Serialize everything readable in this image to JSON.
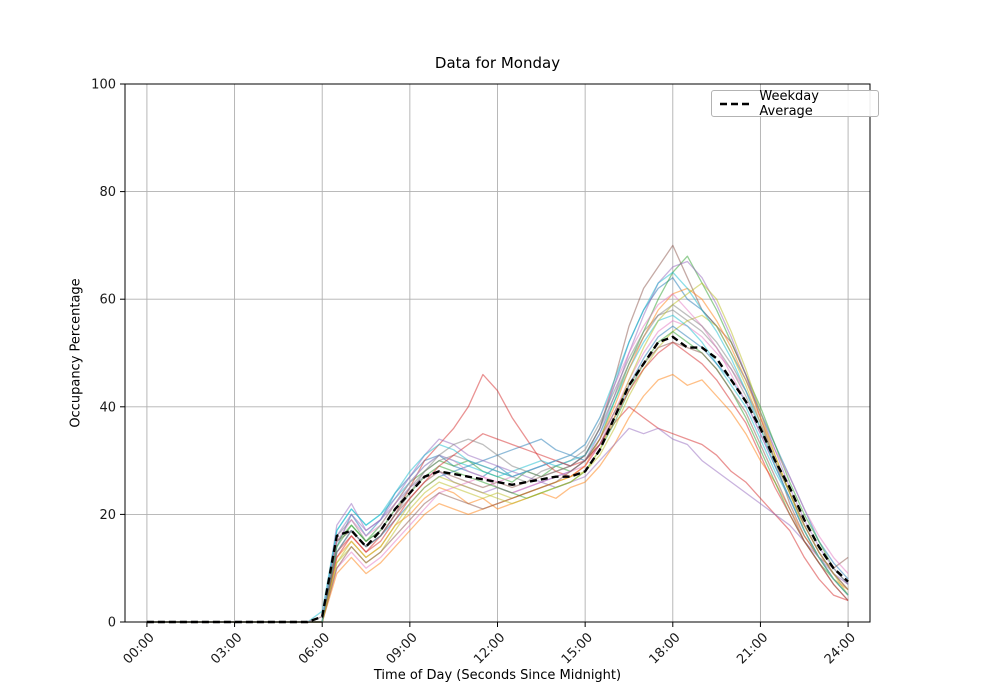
{
  "chart_data": {
    "type": "line",
    "title": "Data for Monday",
    "xlabel": "Time of Day (Seconds Since Midnight)",
    "ylabel": "Occupancy Percentage",
    "xlim": [
      -0.75,
      24.75
    ],
    "ylim": [
      0,
      100
    ],
    "grid": true,
    "grid_color": "#b0b0b0",
    "axis_color": "#000000",
    "tick_label_color": "#1a1a1a",
    "x_ticks": {
      "hours": [
        0,
        3,
        6,
        9,
        12,
        15,
        18,
        21,
        24
      ],
      "labels": [
        "00:00",
        "03:00",
        "06:00",
        "09:00",
        "12:00",
        "15:00",
        "18:00",
        "21:00",
        "24:00"
      ]
    },
    "y_ticks": [
      0,
      20,
      40,
      60,
      80,
      100
    ],
    "x_start": 0,
    "x_step": 0.5,
    "legend": {
      "label": "Weekday Average",
      "loc": "upper right"
    },
    "series_opacity": 0.5,
    "palette": [
      "#1f77b4",
      "#ff7f0e",
      "#2ca02c",
      "#d62728",
      "#9467bd",
      "#8c564b",
      "#e377c2",
      "#7f7f7f",
      "#bcbd22",
      "#17becf"
    ],
    "average": {
      "color": "#000000",
      "dash": [
        7,
        4
      ],
      "values": [
        0,
        0,
        0,
        0,
        0,
        0,
        0,
        0,
        0,
        0,
        0,
        0,
        1,
        16,
        17,
        14,
        17,
        21,
        24,
        27,
        28,
        27.5,
        27,
        26.5,
        26,
        25.5,
        26,
        26.5,
        27,
        27,
        28,
        32,
        38,
        44,
        48,
        52,
        53,
        51,
        51,
        49,
        45,
        41,
        36,
        30,
        25,
        19,
        14,
        10,
        7.5
      ]
    },
    "series": [
      [
        0,
        0,
        0,
        0,
        0,
        0,
        0,
        0,
        0,
        0,
        0,
        0,
        0,
        14,
        20,
        16,
        19,
        24,
        27,
        30,
        31,
        29,
        28,
        27,
        29,
        27,
        28,
        29,
        30,
        29,
        31,
        36,
        44,
        52,
        58,
        62,
        64,
        60,
        58,
        55,
        50,
        45,
        39,
        33,
        27,
        21,
        15,
        11,
        8
      ],
      [
        0,
        0,
        0,
        0,
        0,
        0,
        0,
        0,
        0,
        0,
        0,
        0,
        0,
        12,
        15,
        12,
        14,
        18,
        20,
        23,
        25,
        24,
        22,
        23,
        21,
        22,
        23,
        24,
        23,
        25,
        26,
        29,
        33,
        38,
        42,
        45,
        46,
        44,
        45,
        42,
        39,
        35,
        30,
        26,
        21,
        16,
        12,
        8,
        6
      ],
      [
        0,
        0,
        0,
        0,
        0,
        0,
        0,
        0,
        0,
        0,
        0,
        0,
        1,
        15,
        18,
        15,
        18,
        22,
        26,
        28,
        30,
        29,
        30,
        28,
        27,
        26,
        28,
        27,
        29,
        28,
        30,
        34,
        41,
        48,
        54,
        60,
        65,
        68,
        63,
        58,
        52,
        46,
        40,
        33,
        26,
        20,
        15,
        10,
        7
      ],
      [
        0,
        0,
        0,
        0,
        0,
        0,
        0,
        0,
        0,
        0,
        0,
        0,
        0,
        13,
        16,
        13,
        16,
        20,
        25,
        30,
        33,
        36,
        40,
        46,
        43,
        38,
        34,
        30,
        28,
        27,
        29,
        33,
        37,
        40,
        38,
        36,
        35,
        34,
        33,
        31,
        28,
        26,
        23,
        20,
        17,
        12,
        8,
        5,
        4
      ],
      [
        0,
        0,
        0,
        0,
        0,
        0,
        0,
        0,
        0,
        0,
        0,
        0,
        0,
        18,
        22,
        17,
        19,
        22,
        25,
        27,
        28,
        26,
        25,
        24,
        25,
        24,
        25,
        26,
        25,
        26,
        27,
        30,
        33,
        36,
        35,
        36,
        34,
        33,
        30,
        28,
        26,
        24,
        22,
        20,
        18,
        15,
        12,
        9,
        7
      ],
      [
        0,
        0,
        0,
        0,
        0,
        0,
        0,
        0,
        0,
        0,
        0,
        0,
        0,
        15,
        17,
        14,
        16,
        20,
        23,
        26,
        28,
        27,
        26,
        25,
        26,
        25,
        26,
        27,
        28,
        29,
        31,
        36,
        45,
        55,
        62,
        66,
        70,
        64,
        58,
        55,
        52,
        46,
        38,
        30,
        22,
        16,
        12,
        10,
        12
      ],
      [
        0,
        0,
        0,
        0,
        0,
        0,
        0,
        0,
        0,
        0,
        0,
        0,
        0,
        10,
        13,
        10,
        12,
        15,
        18,
        21,
        24,
        25,
        26,
        27,
        25,
        24,
        25,
        26,
        27,
        28,
        29,
        33,
        39,
        45,
        50,
        54,
        56,
        55,
        53,
        50,
        47,
        43,
        38,
        32,
        27,
        21,
        16,
        12,
        9
      ],
      [
        0,
        0,
        0,
        0,
        0,
        0,
        0,
        0,
        0,
        0,
        0,
        0,
        0,
        16,
        19,
        15,
        17,
        21,
        25,
        28,
        30,
        31,
        30,
        29,
        28,
        27,
        26,
        28,
        29,
        30,
        32,
        37,
        43,
        49,
        54,
        57,
        58,
        56,
        54,
        51,
        47,
        42,
        36,
        30,
        24,
        18,
        13,
        9,
        6
      ],
      [
        0,
        0,
        0,
        0,
        0,
        0,
        0,
        0,
        0,
        0,
        0,
        0,
        0,
        11,
        14,
        11,
        13,
        17,
        21,
        24,
        26,
        25,
        24,
        23,
        24,
        23,
        24,
        25,
        26,
        27,
        28,
        31,
        36,
        42,
        47,
        51,
        54,
        56,
        57,
        55,
        50,
        44,
        37,
        30,
        24,
        18,
        13,
        9,
        5
      ],
      [
        0,
        0,
        0,
        0,
        0,
        0,
        0,
        0,
        0,
        0,
        0,
        0,
        2,
        17,
        21,
        18,
        20,
        23,
        26,
        29,
        31,
        30,
        29,
        28,
        27,
        28,
        29,
        30,
        29,
        30,
        31,
        35,
        41,
        47,
        52,
        56,
        57,
        55,
        52,
        48,
        44,
        40,
        34,
        28,
        23,
        17,
        12,
        8,
        5
      ],
      [
        0,
        0,
        0,
        0,
        0,
        0,
        0,
        0,
        0,
        0,
        0,
        0,
        0,
        13,
        17,
        14,
        16,
        19,
        22,
        25,
        27,
        28,
        29,
        30,
        31,
        32,
        33,
        34,
        32,
        31,
        30,
        33,
        38,
        44,
        49,
        53,
        55,
        53,
        51,
        48,
        45,
        41,
        35,
        29,
        23,
        17,
        12,
        8,
        5
      ],
      [
        0,
        0,
        0,
        0,
        0,
        0,
        0,
        0,
        0,
        0,
        0,
        0,
        0,
        9,
        12,
        9,
        11,
        14,
        17,
        20,
        22,
        21,
        20,
        21,
        22,
        23,
        24,
        25,
        26,
        27,
        29,
        34,
        40,
        47,
        53,
        58,
        61,
        62,
        60,
        56,
        51,
        45,
        38,
        31,
        24,
        18,
        13,
        9,
        6
      ],
      [
        0,
        0,
        0,
        0,
        0,
        0,
        0,
        0,
        0,
        0,
        0,
        0,
        0,
        14,
        18,
        15,
        17,
        21,
        24,
        27,
        29,
        28,
        27,
        26,
        25,
        24,
        23,
        24,
        25,
        26,
        28,
        32,
        37,
        43,
        48,
        52,
        54,
        52,
        50,
        47,
        43,
        38,
        32,
        26,
        20,
        15,
        11,
        8,
        5
      ],
      [
        0,
        0,
        0,
        0,
        0,
        0,
        0,
        0,
        0,
        0,
        0,
        0,
        0,
        12,
        16,
        13,
        15,
        19,
        23,
        26,
        29,
        31,
        33,
        35,
        34,
        33,
        32,
        31,
        30,
        29,
        30,
        33,
        38,
        43,
        47,
        50,
        52,
        50,
        48,
        45,
        41,
        37,
        31,
        25,
        20,
        15,
        11,
        7,
        4
      ],
      [
        0,
        0,
        0,
        0,
        0,
        0,
        0,
        0,
        0,
        0,
        0,
        0,
        0,
        16,
        20,
        17,
        19,
        23,
        27,
        31,
        34,
        33,
        31,
        30,
        29,
        28,
        27,
        26,
        27,
        28,
        30,
        35,
        42,
        50,
        57,
        63,
        66,
        67,
        64,
        59,
        53,
        46,
        39,
        32,
        25,
        19,
        14,
        10,
        7
      ],
      [
        0,
        0,
        0,
        0,
        0,
        0,
        0,
        0,
        0,
        0,
        0,
        0,
        0,
        10,
        14,
        11,
        13,
        16,
        19,
        22,
        24,
        23,
        22,
        21,
        22,
        23,
        24,
        25,
        26,
        28,
        30,
        34,
        39,
        44,
        48,
        51,
        52,
        51,
        50,
        47,
        43,
        39,
        33,
        27,
        21,
        15,
        11,
        7,
        4
      ],
      [
        0,
        0,
        0,
        0,
        0,
        0,
        0,
        0,
        0,
        0,
        0,
        0,
        1,
        15,
        19,
        16,
        18,
        22,
        26,
        29,
        31,
        30,
        28,
        27,
        26,
        27,
        28,
        29,
        30,
        31,
        33,
        38,
        44,
        50,
        55,
        59,
        61,
        58,
        55,
        51,
        46,
        41,
        35,
        29,
        23,
        17,
        12,
        8,
        5
      ],
      [
        0,
        0,
        0,
        0,
        0,
        0,
        0,
        0,
        0,
        0,
        0,
        0,
        0,
        13,
        17,
        14,
        16,
        20,
        24,
        28,
        31,
        33,
        34,
        33,
        31,
        29,
        28,
        27,
        28,
        29,
        31,
        36,
        42,
        48,
        53,
        57,
        59,
        57,
        55,
        52,
        48,
        43,
        37,
        30,
        24,
        18,
        13,
        9,
        6
      ],
      [
        0,
        0,
        0,
        0,
        0,
        0,
        0,
        0,
        0,
        0,
        0,
        0,
        0,
        11,
        15,
        12,
        14,
        18,
        22,
        25,
        27,
        26,
        25,
        24,
        23,
        22,
        23,
        24,
        25,
        26,
        28,
        32,
        38,
        45,
        51,
        56,
        59,
        61,
        63,
        60,
        54,
        47,
        39,
        31,
        24,
        17,
        12,
        8,
        5
      ],
      [
        0,
        0,
        0,
        0,
        0,
        0,
        0,
        0,
        0,
        0,
        0,
        0,
        0,
        17,
        21,
        18,
        20,
        24,
        28,
        31,
        33,
        32,
        30,
        29,
        28,
        27,
        28,
        29,
        30,
        31,
        33,
        38,
        45,
        52,
        58,
        63,
        65,
        62,
        58,
        54,
        49,
        43,
        36,
        29,
        23,
        17,
        12,
        8,
        5
      ]
    ]
  }
}
